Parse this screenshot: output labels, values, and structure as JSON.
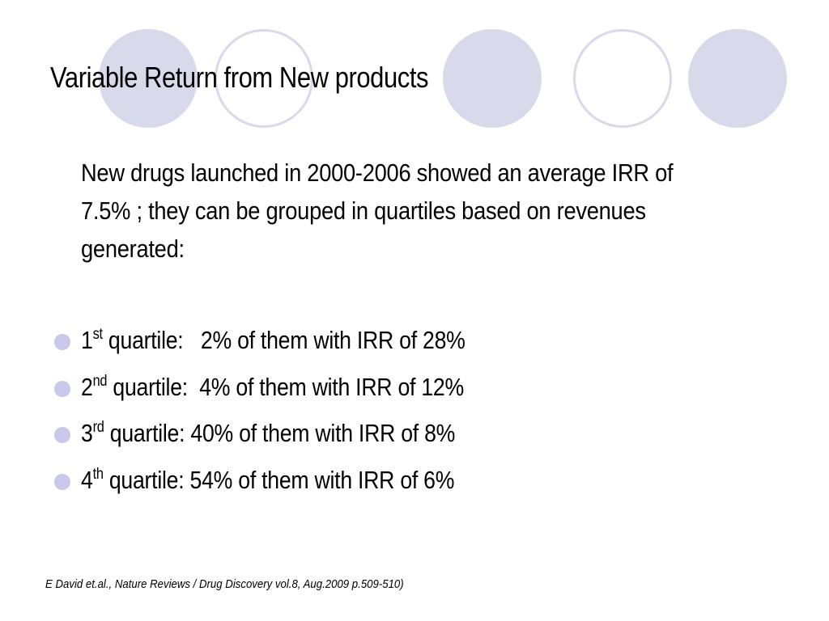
{
  "slide": {
    "title": "Variable Return from New products",
    "intro": "New drugs launched in 2000-2006 showed an average IRR of 7.5% ; they can be grouped in quartiles based on revenues generated:",
    "bullets": [
      {
        "num": "1",
        "sup": "st",
        "text": " quartile:   2% of them with IRR of 28%"
      },
      {
        "num": "2",
        "sup": "nd",
        "text": " quartile:  4% of them with IRR of 12%"
      },
      {
        "num": "3",
        "sup": "rd",
        "text": " quartile: 40% of them with IRR of 8%"
      },
      {
        "num": "4",
        "sup": "th",
        "text": " quartile: 54% of them with IRR of 6%"
      }
    ],
    "citation": "E David et.al., Nature Reviews / Drug Discovery vol.8, Aug.2009 p.509-510)"
  },
  "theme": {
    "circle_color": "#d9d9ec",
    "bullet_color": "#c8c8ea",
    "text_color": "#000000",
    "background": "#ffffff"
  }
}
